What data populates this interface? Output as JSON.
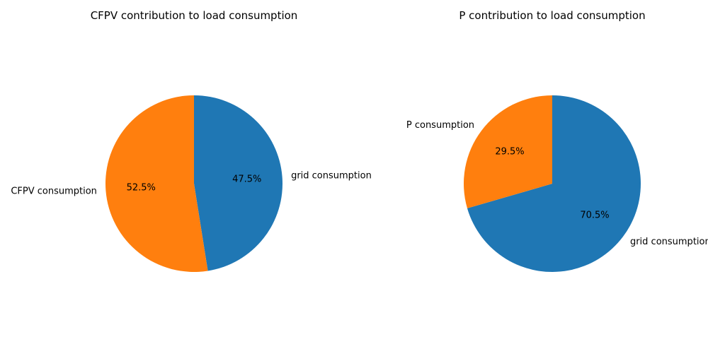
{
  "chart_data": [
    {
      "type": "pie",
      "title": "CFPV contribution to load consumption",
      "start_angle_deg": 90,
      "direction": "clockwise",
      "slices": [
        {
          "label": "grid consumption",
          "value": 47.5,
          "pct_label": "47.5%",
          "color": "#1f77b4"
        },
        {
          "label": "CFPV consumption",
          "value": 52.5,
          "pct_label": "52.5%",
          "color": "#ff7f0e"
        }
      ]
    },
    {
      "type": "pie",
      "title": "P contribution to load consumption",
      "start_angle_deg": 90,
      "direction": "clockwise",
      "slices": [
        {
          "label": "grid consumption",
          "value": 70.5,
          "pct_label": "70.5%",
          "color": "#1f77b4"
        },
        {
          "label": "P consumption",
          "value": 29.5,
          "pct_label": "29.5%",
          "color": "#ff7f0e"
        }
      ]
    }
  ]
}
